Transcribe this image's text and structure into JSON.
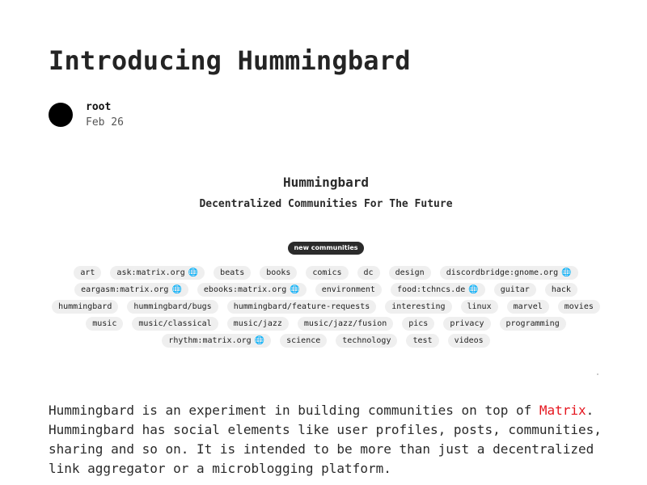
{
  "post": {
    "title": "Introducing Hummingbard",
    "author": "root",
    "date": "Feb 26"
  },
  "embed": {
    "title": "Hummingbard",
    "subtitle": "Decentralized Communities For The Future",
    "badge": "new communities",
    "tags": [
      {
        "label": "art",
        "icon": null
      },
      {
        "label": "ask:matrix.org",
        "icon": "globe-icon"
      },
      {
        "label": "beats",
        "icon": null
      },
      {
        "label": "books",
        "icon": null
      },
      {
        "label": "comics",
        "icon": null
      },
      {
        "label": "dc",
        "icon": null
      },
      {
        "label": "design",
        "icon": null
      },
      {
        "label": "discordbridge:gnome.org",
        "icon": "globe-icon"
      },
      {
        "label": "eargasm:matrix.org",
        "icon": "globe-icon"
      },
      {
        "label": "ebooks:matrix.org",
        "icon": "globe-icon"
      },
      {
        "label": "environment",
        "icon": null
      },
      {
        "label": "food:tchncs.de",
        "icon": "globe-icon"
      },
      {
        "label": "guitar",
        "icon": null
      },
      {
        "label": "hack",
        "icon": null
      },
      {
        "label": "hummingbard",
        "icon": null
      },
      {
        "label": "hummingbard/bugs",
        "icon": null
      },
      {
        "label": "hummingbard/feature-requests",
        "icon": null
      },
      {
        "label": "interesting",
        "icon": null
      },
      {
        "label": "linux",
        "icon": null
      },
      {
        "label": "marvel",
        "icon": null
      },
      {
        "label": "movies",
        "icon": null
      },
      {
        "label": "music",
        "icon": null
      },
      {
        "label": "music/classical",
        "icon": null
      },
      {
        "label": "music/jazz",
        "icon": null
      },
      {
        "label": "music/jazz/fusion",
        "icon": null
      },
      {
        "label": "pics",
        "icon": null
      },
      {
        "label": "privacy",
        "icon": null
      },
      {
        "label": "programming",
        "icon": null
      },
      {
        "label": "rhythm:matrix.org",
        "icon": "globe-icon"
      },
      {
        "label": "science",
        "icon": null
      },
      {
        "label": "technology",
        "icon": null
      },
      {
        "label": "test",
        "icon": null
      },
      {
        "label": "videos",
        "icon": null
      }
    ]
  },
  "body": {
    "text_before": "Hummingbard is an experiment in building communities on top of ",
    "link_text": "Matrix",
    "text_after": ". Hummingbard has social elements like user profiles, posts, communities, sharing and so on. It is intended to be more than just a decentralized link aggregator or a microblogging platform."
  },
  "colors": {
    "link": "#e5161f",
    "badge_bg": "#2b2b2b",
    "tag_bg": "#efefef",
    "globe": "#4f86c7"
  }
}
